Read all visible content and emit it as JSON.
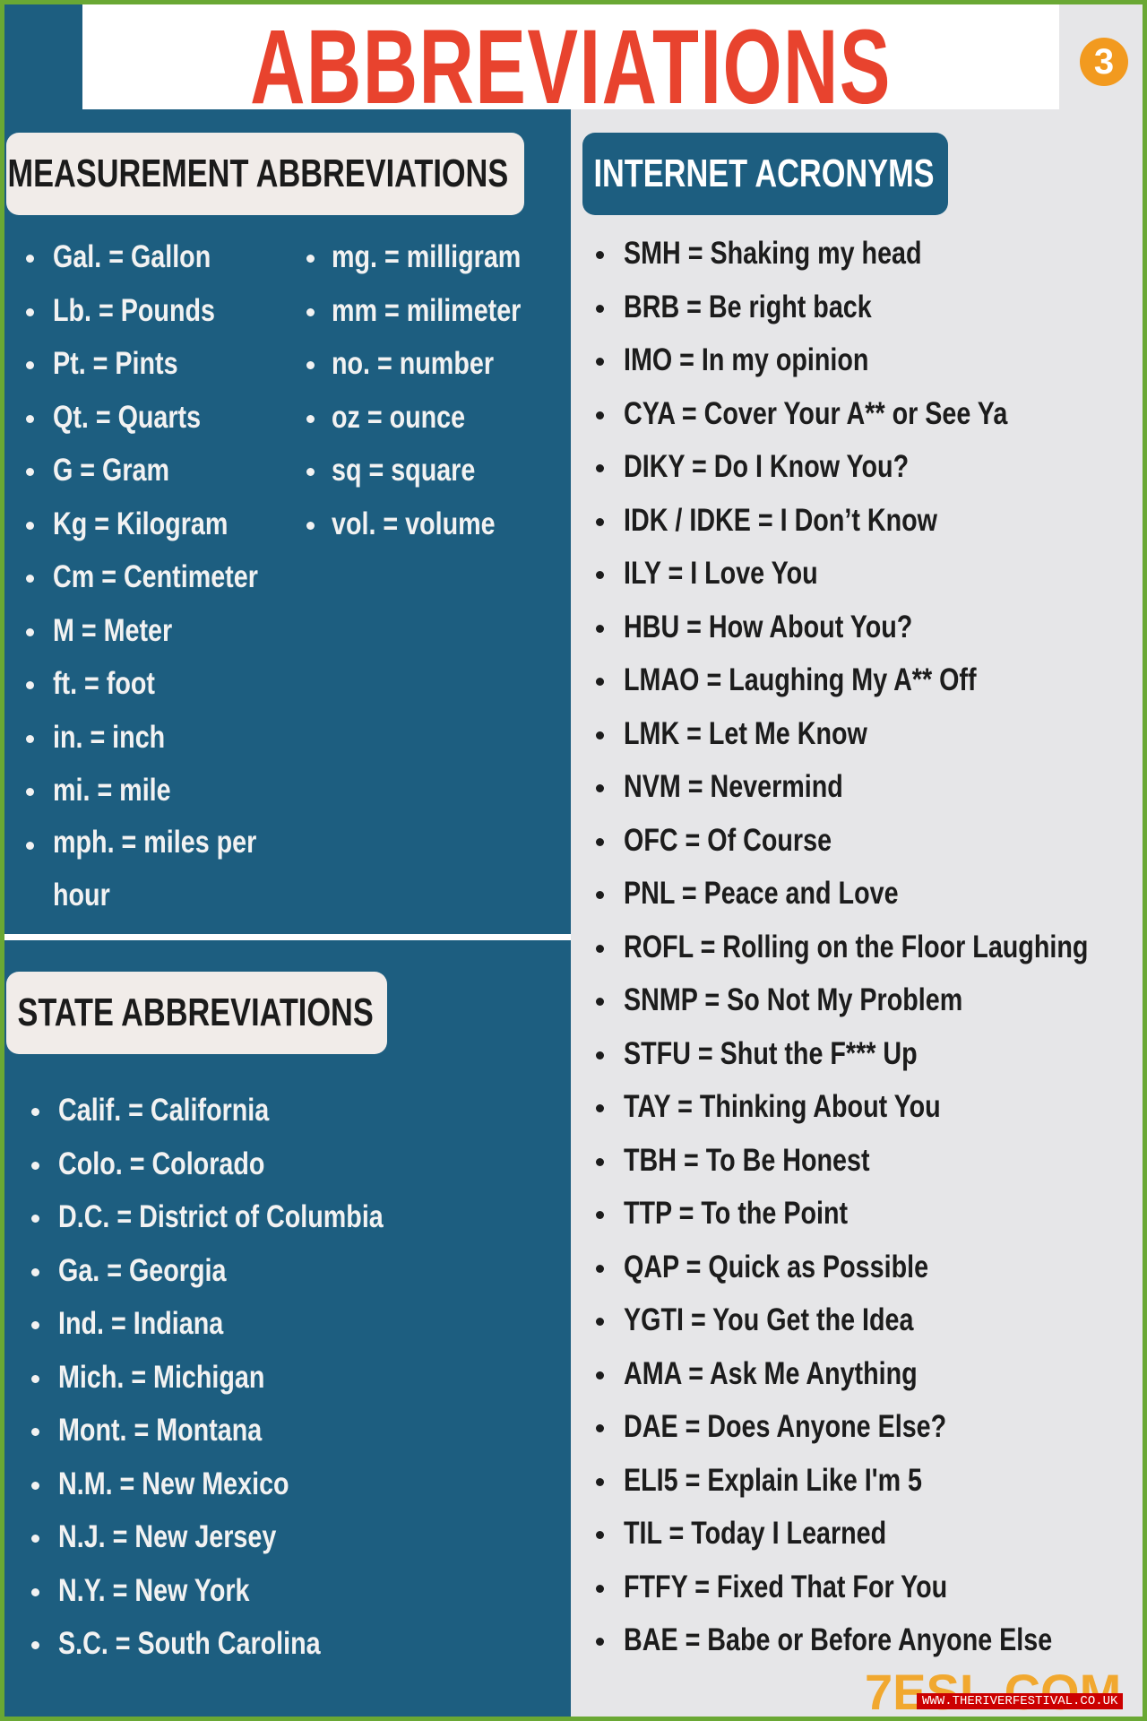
{
  "header": {
    "title": "ABBREVIATIONS",
    "badge": "3"
  },
  "measurement": {
    "title": "MEASUREMENT ABBREVIATIONS",
    "left": [
      "Gal. = Gallon",
      "Lb. = Pounds",
      "Pt. = Pints",
      "Qt. = Quarts",
      "G = Gram",
      "Kg = Kilogram",
      "Cm = Centimeter",
      "M = Meter",
      "ft. = foot",
      "in. = inch",
      "mi. = mile",
      "mph. = miles per hour"
    ],
    "right": [
      "mg. = milligram",
      "mm = milimeter",
      "no. = number",
      "oz = ounce",
      "sq = square",
      "vol. = volume"
    ]
  },
  "states": {
    "title": "STATE ABBREVIATIONS",
    "items": [
      "Calif. = California",
      "Colo. = Colorado",
      "D.C. = District of Columbia",
      "Ga. = Georgia",
      "Ind. = Indiana",
      "Mich. = Michigan",
      "Mont. = Montana",
      "N.M. = New Mexico",
      "N.J. = New Jersey",
      "N.Y. = New York",
      "S.C. = South Carolina"
    ]
  },
  "internet": {
    "title": "INTERNET ACRONYMS",
    "items": [
      "SMH = Shaking my head",
      "BRB = Be right back",
      "IMO = In my opinion",
      "CYA = Cover Your A** or See Ya",
      "DIKY = Do I Know You?",
      "IDK / IDKE = I Don’t Know",
      "ILY = I Love You",
      "HBU = How About You?",
      "LMAO = Laughing My A** Off",
      "LMK = Let Me Know",
      "NVM = Nevermind",
      "OFC = Of Course",
      "PNL = Peace and Love",
      "ROFL = Rolling on the Floor Laughing",
      "SNMP = So Not My Problem",
      "STFU = Shut the F*** Up",
      "TAY = Thinking About You",
      "TBH = To Be Honest",
      "TTP = To the Point",
      "QAP = Quick as Possible",
      "YGTI = You Get the Idea",
      "AMA = Ask Me Anything",
      "DAE = Does Anyone Else?",
      "ELI5 = Explain Like I'm 5",
      "TIL = Today I Learned",
      "FTFY = Fixed That For You",
      "BAE = Babe or Before Anyone Else"
    ]
  },
  "footer": {
    "logo": "7ESL.COM",
    "url": "WWW.THERIVERFESTIVAL.CO.UK"
  }
}
